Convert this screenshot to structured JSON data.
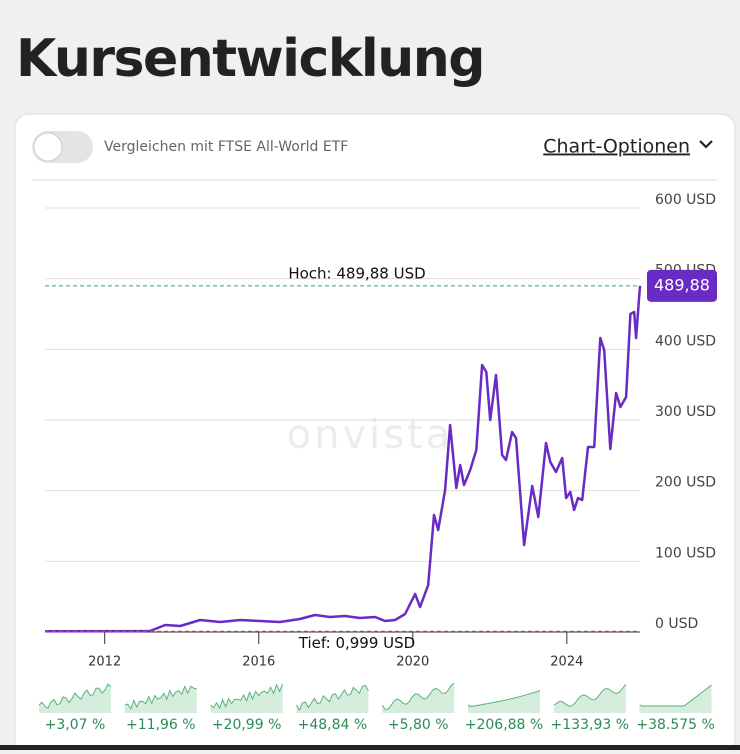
{
  "header": {
    "title": "Kursentwicklung"
  },
  "controls": {
    "compare_label": "Vergleichen mit FTSE All-World ETF",
    "options_label": "Chart-Optionen"
  },
  "chart_data": {
    "type": "line",
    "watermark": "onvista",
    "x": [
      2010.45,
      2013.18,
      2013.57,
      2013.96,
      2014.48,
      2015.0,
      2015.52,
      2016.03,
      2016.55,
      2017.07,
      2017.46,
      2017.85,
      2018.24,
      2018.63,
      2019.02,
      2019.28,
      2019.54,
      2019.8,
      2020.06,
      2020.19,
      2020.4,
      2020.55,
      2020.66,
      2020.84,
      2020.97,
      2021.13,
      2021.23,
      2021.33,
      2021.49,
      2021.65,
      2021.8,
      2021.91,
      2022.01,
      2022.16,
      2022.32,
      2022.42,
      2022.58,
      2022.68,
      2022.89,
      2023.1,
      2023.26,
      2023.46,
      2023.57,
      2023.72,
      2023.88,
      2023.98,
      2024.09,
      2024.19,
      2024.29,
      2024.4,
      2024.55,
      2024.71,
      2024.87,
      2024.97,
      2025.13,
      2025.28,
      2025.39,
      2025.54,
      2025.65,
      2025.75,
      2025.8,
      2025.9
    ],
    "series": [
      {
        "color": "#6a2bc4",
        "values": [
          1.0,
          1.4,
          9.9,
          8.5,
          17.0,
          14.2,
          17.0,
          15.6,
          14.2,
          18.4,
          24.1,
          21.2,
          22.6,
          19.8,
          21.2,
          15.6,
          17.0,
          25.5,
          53.8,
          35.4,
          66.5,
          165.6,
          144.3,
          200.9,
          292.9,
          203.8,
          236.3,
          208.0,
          229.2,
          257.5,
          377.8,
          367.9,
          300.0,
          363.7,
          250.5,
          243.4,
          283.0,
          274.5,
          123.1,
          206.6,
          162.7,
          267.4,
          240.6,
          226.4,
          246.2,
          189.6,
          198.1,
          172.6,
          189.6,
          186.8,
          261.8,
          261.8,
          416.0,
          399.0,
          259.0,
          338.2,
          318.4,
          332.5,
          450.0,
          452.8,
          416.0,
          489.88
        ]
      }
    ],
    "xlim": [
      2010.45,
      2025.9
    ],
    "xticks": [
      2012,
      2016,
      2020,
      2024
    ],
    "ylim": [
      0,
      600
    ],
    "yticks": [
      {
        "value": 0,
        "label": "0 USD"
      },
      {
        "value": 100,
        "label": "100 USD"
      },
      {
        "value": 200,
        "label": "200 USD"
      },
      {
        "value": 300,
        "label": "300 USD"
      },
      {
        "value": 400,
        "label": "400 USD"
      },
      {
        "value": 500,
        "label": "500 USD"
      },
      {
        "value": 600,
        "label": "600 USD"
      }
    ],
    "grid": true,
    "high": {
      "value": 489.88,
      "label": "Hoch: 489,88 USD",
      "color": "#3aa36b"
    },
    "low": {
      "value": 0.999,
      "label": "Tief: 0,999 USD",
      "color": "#d9532b"
    },
    "current": {
      "value": 489.88,
      "label": "489,88",
      "color": "#6a2bc4"
    },
    "returns": [
      {
        "value": 3.07,
        "label": "+3,07 %"
      },
      {
        "value": 11.96,
        "label": "+11,96 %"
      },
      {
        "value": 20.99,
        "label": "+20,99 %"
      },
      {
        "value": 48.84,
        "label": "+48,84 %"
      },
      {
        "value": 5.8,
        "label": "+5,80 %"
      },
      {
        "value": 206.88,
        "label": "+206,88 %"
      },
      {
        "value": 133.93,
        "label": "+133,93 %"
      },
      {
        "value": 38575,
        "label": "+38.575 %"
      }
    ]
  }
}
